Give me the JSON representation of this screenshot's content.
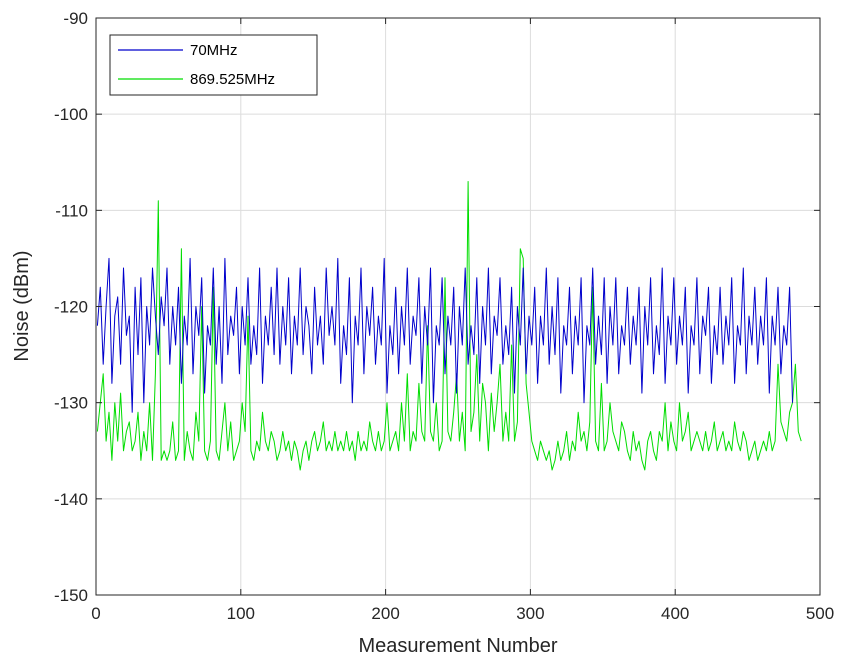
{
  "chart_data": {
    "type": "line",
    "title": "",
    "xlabel": "Measurement Number",
    "ylabel": "Noise (dBm)",
    "xlim": [
      0,
      500
    ],
    "ylim": [
      -150,
      -90
    ],
    "xticks": [
      0,
      100,
      200,
      300,
      400,
      500
    ],
    "yticks": [
      -150,
      -140,
      -130,
      -120,
      -110,
      -100,
      -90
    ],
    "grid": true,
    "legend_position": "top-left",
    "series": [
      {
        "name": "70MHz",
        "color": "#0000cc",
        "x_start": 1,
        "x_step": 2,
        "values": [
          -122,
          -118,
          -126,
          -120,
          -115,
          -128,
          -121,
          -119,
          -126,
          -116,
          -123,
          -121,
          -131,
          -118,
          -125,
          -117,
          -130,
          -120,
          -124,
          -116,
          -121,
          -125,
          -119,
          -122,
          -116,
          -126,
          -120,
          -124,
          -118,
          -128,
          -121,
          -124,
          -115,
          -127,
          -120,
          -123,
          -117,
          -129,
          -122,
          -124,
          -116,
          -126,
          -120,
          -128,
          -115,
          -125,
          -121,
          -123,
          -118,
          -127,
          -120,
          -124,
          -117,
          -126,
          -122,
          -125,
          -116,
          -128,
          -121,
          -124,
          -118,
          -125,
          -116,
          -126,
          -120,
          -124,
          -117,
          -127,
          -121,
          -124,
          -116,
          -125,
          -120,
          -122,
          -127,
          -118,
          -124,
          -121,
          -126,
          -116,
          -123,
          -120,
          -124,
          -115,
          -128,
          -122,
          -125,
          -117,
          -130,
          -121,
          -124,
          -116,
          -127,
          -120,
          -123,
          -118,
          -126,
          -121,
          -124,
          -115,
          -129,
          -122,
          -125,
          -118,
          -127,
          -120,
          -124,
          -116,
          -126,
          -121,
          -123,
          -117,
          -128,
          -120,
          -124,
          -116,
          -130,
          -122,
          -124,
          -117,
          -127,
          -121,
          -124,
          -118,
          -129,
          -120,
          -124,
          -116,
          -126,
          -122,
          -125,
          -117,
          -128,
          -120,
          -124,
          -116,
          -127,
          -121,
          -123,
          -117,
          -126,
          -122,
          -125,
          -118,
          -129,
          -120,
          -124,
          -116,
          -127,
          -121,
          -124,
          -118,
          -128,
          -121,
          -124,
          -116,
          -126,
          -120,
          -125,
          -117,
          -129,
          -122,
          -124,
          -118,
          -127,
          -121,
          -124,
          -117,
          -130,
          -122,
          -124,
          -116,
          -126,
          -121,
          -125,
          -117,
          -128,
          -120,
          -124,
          -117,
          -127,
          -122,
          -124,
          -118,
          -126,
          -121,
          -124,
          -118,
          -129,
          -120,
          -124,
          -117,
          -127,
          -122,
          -125,
          -116,
          -128,
          -121,
          -124,
          -117,
          -126,
          -121,
          -124,
          -118,
          -129,
          -122,
          -124,
          -117,
          -127,
          -121,
          -123,
          -118,
          -128,
          -122,
          -125,
          -118,
          -126,
          -121,
          -124,
          -117,
          -128,
          -122,
          -124,
          -116,
          -127,
          -121,
          -124,
          -118,
          -126,
          -121,
          -124,
          -117,
          -129,
          -121,
          -124,
          -118,
          -127,
          -122,
          -124,
          -118,
          -130
        ]
      },
      {
        "name": "869.525MHz",
        "color": "#00dd00",
        "x_start": 1,
        "x_step": 2,
        "values": [
          -133,
          -130,
          -127,
          -134,
          -131,
          -136,
          -130,
          -134,
          -129,
          -135,
          -133,
          -132,
          -135,
          -134,
          -131,
          -136,
          -133,
          -135,
          -130,
          -136,
          -127,
          -109,
          -136,
          -135,
          -136,
          -135,
          -132,
          -136,
          -135,
          -114,
          -136,
          -133,
          -135,
          -136,
          -131,
          -134,
          -120,
          -135,
          -136,
          -134,
          -118,
          -135,
          -136,
          -133,
          -130,
          -135,
          -132,
          -136,
          -135,
          -134,
          -130,
          -133,
          -121,
          -135,
          -136,
          -134,
          -135,
          -131,
          -134,
          -135,
          -133,
          -134,
          -136,
          -135,
          -133,
          -135,
          -134,
          -136,
          -134,
          -135,
          -137,
          -135,
          -134,
          -136,
          -134,
          -133,
          -135,
          -134,
          -132,
          -135,
          -134,
          -135,
          -133,
          -135,
          -134,
          -135,
          -133,
          -135,
          -134,
          -136,
          -133,
          -135,
          -134,
          -135,
          -132,
          -134,
          -135,
          -133,
          -135,
          -134,
          -130,
          -135,
          -134,
          -133,
          -135,
          -130,
          -134,
          -127,
          -135,
          -133,
          -134,
          -128,
          -133,
          -134,
          -122,
          -133,
          -134,
          -130,
          -135,
          -134,
          -117,
          -133,
          -134,
          -131,
          -127,
          -134,
          -131,
          -135,
          -107,
          -133,
          -131,
          -125,
          -134,
          -128,
          -130,
          -135,
          -129,
          -133,
          -130,
          -126,
          -134,
          -131,
          -134,
          -124,
          -134,
          -132,
          -114,
          -115,
          -128,
          -131,
          -134,
          -135,
          -136,
          -134,
          -135,
          -136,
          -135,
          -137,
          -136,
          -134,
          -136,
          -135,
          -133,
          -136,
          -134,
          -135,
          -131,
          -134,
          -133,
          -135,
          -132,
          -118,
          -134,
          -135,
          -128,
          -135,
          -134,
          -130,
          -133,
          -134,
          -135,
          -132,
          -133,
          -135,
          -136,
          -133,
          -135,
          -134,
          -136,
          -137,
          -134,
          -133,
          -135,
          -136,
          -133,
          -134,
          -130,
          -135,
          -132,
          -134,
          -135,
          -130,
          -134,
          -133,
          -131,
          -135,
          -134,
          -133,
          -134,
          -135,
          -133,
          -135,
          -134,
          -132,
          -135,
          -134,
          -133,
          -135,
          -134,
          -135,
          -132,
          -134,
          -135,
          -133,
          -134,
          -136,
          -135,
          -134,
          -136,
          -135,
          -134,
          -135,
          -133,
          -135,
          -134,
          -126,
          -132,
          -133,
          -134,
          -131,
          -130,
          -126,
          -133,
          -134
        ]
      }
    ]
  }
}
